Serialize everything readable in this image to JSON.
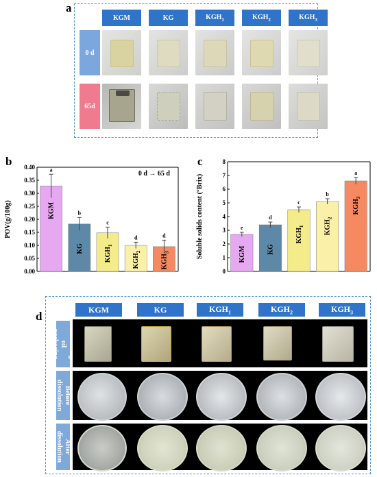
{
  "panel_a": {
    "letter": "a",
    "columns": [
      "KGM",
      "KG",
      "KGH1",
      "KGH2",
      "KGH3"
    ],
    "rows": [
      {
        "label": "0 d",
        "color": "#7ba7dd"
      },
      {
        "label": "65d",
        "color": "#f07b8e"
      }
    ]
  },
  "panel_b": {
    "letter": "b",
    "annotation": "0 d → 65 d",
    "chart_data": {
      "type": "bar",
      "categories": [
        "KGM",
        "KG",
        "KGH1",
        "KGH2",
        "KGH3"
      ],
      "values": [
        0.328,
        0.182,
        0.148,
        0.1,
        0.095
      ],
      "errors": [
        0.045,
        0.025,
        0.022,
        0.012,
        0.025
      ],
      "letters": [
        "a",
        "b",
        "c",
        "d",
        "d"
      ],
      "colors": [
        "#e6a8f0",
        "#5e88a8",
        "#f4ec8a",
        "#fbf0a8",
        "#f58a62"
      ],
      "ylabel": "POV(g/100g)",
      "ylim": [
        0,
        0.4
      ],
      "yticks": [
        "0.00",
        "0.05",
        "0.10",
        "0.15",
        "0.20",
        "0.25",
        "0.30",
        "0.35",
        "0.40"
      ]
    }
  },
  "panel_c": {
    "letter": "c",
    "chart_data": {
      "type": "bar",
      "categories": [
        "KGM",
        "KG",
        "KGH1",
        "KGH2",
        "KGH3"
      ],
      "values": [
        2.7,
        3.4,
        4.5,
        5.1,
        6.6
      ],
      "errors": [
        0.15,
        0.2,
        0.2,
        0.2,
        0.25
      ],
      "letters": [
        "e",
        "d",
        "c",
        "b",
        "a"
      ],
      "colors": [
        "#e6a8f0",
        "#5e88a8",
        "#f4ec8a",
        "#fbf0a8",
        "#f58a62"
      ],
      "ylabel": "Soluble solids content (°Brix)",
      "ylim": [
        0,
        8
      ],
      "yticks": [
        "0",
        "1",
        "2",
        "3",
        "4",
        "5",
        "6",
        "7",
        "8"
      ]
    }
  },
  "panel_d": {
    "letter": "d",
    "columns": [
      "KGM",
      "KG",
      "KGH1",
      "KGH2",
      "KGH3"
    ],
    "rows": [
      "Seasoning oil packaging",
      "Before dissolution",
      "After dissolution"
    ]
  }
}
